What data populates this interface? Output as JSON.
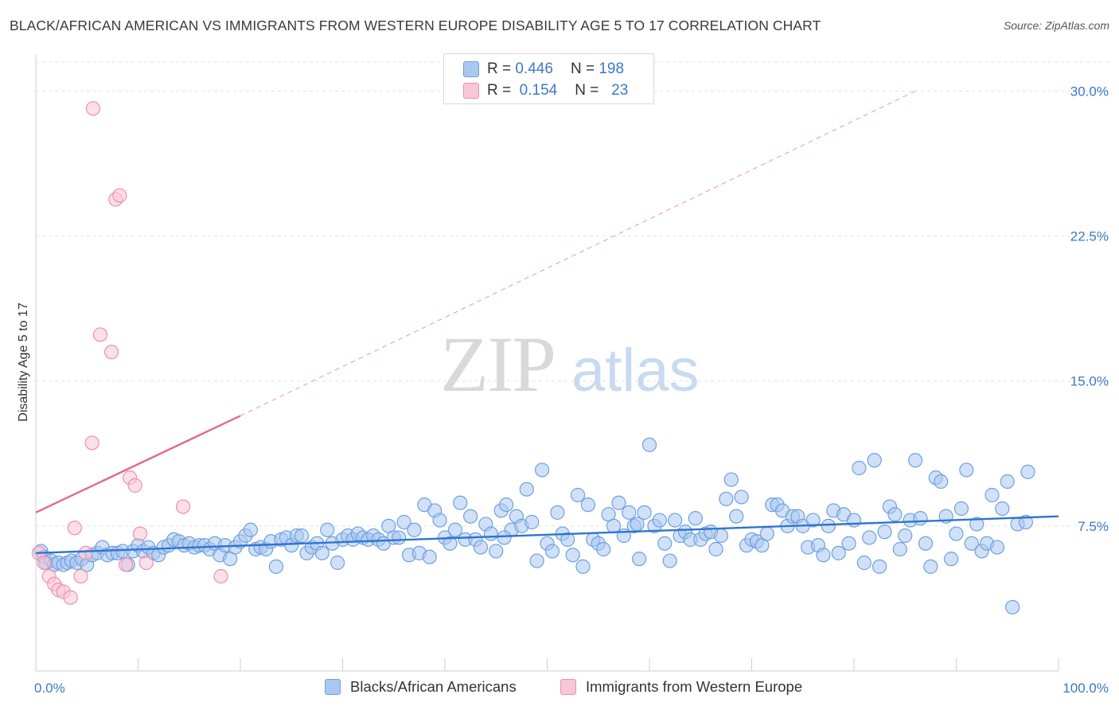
{
  "title": "BLACK/AFRICAN AMERICAN VS IMMIGRANTS FROM WESTERN EUROPE DISABILITY AGE 5 TO 17 CORRELATION CHART",
  "source": "Source: ZipAtlas.com",
  "watermark": {
    "zip": "ZIP",
    "atlas": "atlas"
  },
  "legend": {
    "r_label": "R =",
    "n_label": "N =",
    "rows": [
      {
        "r": "0.446",
        "n": "198",
        "color": "#a9c8f0",
        "border": "#6f9fe0"
      },
      {
        "r": "0.154",
        "n": "23",
        "color": "#f9c6d5",
        "border": "#ef8fab"
      }
    ]
  },
  "chart_data": {
    "type": "scatter",
    "title": "BLACK/AFRICAN AMERICAN VS IMMIGRANTS FROM WESTERN EUROPE DISABILITY AGE 5 TO 17 CORRELATION CHART",
    "xlabel": "",
    "ylabel": "Disability Age 5 to 17",
    "xlim": [
      0,
      100
    ],
    "ylim": [
      0,
      31.5
    ],
    "x_tick_labels": [
      "0.0%",
      "100.0%"
    ],
    "y_ticks": [
      7.5,
      15.0,
      22.5,
      30.0
    ],
    "y_tick_labels": [
      "7.5%",
      "15.0%",
      "22.5%",
      "30.0%"
    ],
    "grid": true,
    "legend_position": "bottom",
    "series": [
      {
        "name": "Blacks/African Americans",
        "color": "#6f9fe0",
        "fill": "#a9c8f0",
        "trend": {
          "x": [
            0,
            100
          ],
          "y": [
            6.1,
            8.0
          ],
          "color": "#2f74d0"
        },
        "points": [
          [
            0.5,
            6.2
          ],
          [
            0.8,
            5.9
          ],
          [
            1.0,
            5.6
          ],
          [
            1.5,
            5.7
          ],
          [
            1.8,
            5.5
          ],
          [
            2.2,
            5.6
          ],
          [
            2.7,
            5.5
          ],
          [
            3.1,
            5.6
          ],
          [
            3.5,
            5.7
          ],
          [
            4.0,
            5.6
          ],
          [
            4.5,
            5.8
          ],
          [
            5.0,
            5.5
          ],
          [
            5.5,
            6.0
          ],
          [
            6.0,
            6.1
          ],
          [
            6.5,
            6.4
          ],
          [
            7.0,
            6.0
          ],
          [
            7.5,
            6.1
          ],
          [
            8.0,
            6.1
          ],
          [
            8.5,
            6.2
          ],
          [
            9.0,
            5.5
          ],
          [
            9.5,
            6.2
          ],
          [
            10.0,
            6.5
          ],
          [
            10.5,
            6.2
          ],
          [
            11.0,
            6.4
          ],
          [
            11.5,
            6.1
          ],
          [
            12.0,
            6.0
          ],
          [
            12.5,
            6.4
          ],
          [
            13.0,
            6.5
          ],
          [
            13.5,
            6.8
          ],
          [
            14.0,
            6.7
          ],
          [
            14.5,
            6.5
          ],
          [
            15.0,
            6.6
          ],
          [
            15.5,
            6.4
          ],
          [
            16.0,
            6.5
          ],
          [
            16.5,
            6.5
          ],
          [
            17.0,
            6.3
          ],
          [
            17.5,
            6.6
          ],
          [
            18.0,
            6.0
          ],
          [
            18.5,
            6.5
          ],
          [
            19.0,
            5.8
          ],
          [
            19.5,
            6.4
          ],
          [
            20.0,
            6.7
          ],
          [
            20.5,
            7.0
          ],
          [
            21.0,
            7.3
          ],
          [
            21.5,
            6.3
          ],
          [
            22.0,
            6.4
          ],
          [
            22.5,
            6.3
          ],
          [
            23.0,
            6.7
          ],
          [
            23.5,
            5.4
          ],
          [
            24.0,
            6.8
          ],
          [
            24.5,
            6.9
          ],
          [
            25.0,
            6.5
          ],
          [
            25.5,
            7.0
          ],
          [
            26.0,
            7.0
          ],
          [
            26.5,
            6.1
          ],
          [
            27.0,
            6.4
          ],
          [
            27.5,
            6.6
          ],
          [
            28.0,
            6.1
          ],
          [
            28.5,
            7.3
          ],
          [
            29.0,
            6.6
          ],
          [
            29.5,
            5.6
          ],
          [
            30.0,
            6.8
          ],
          [
            30.5,
            7.0
          ],
          [
            31.0,
            6.8
          ],
          [
            31.5,
            7.1
          ],
          [
            32.0,
            6.9
          ],
          [
            32.5,
            6.8
          ],
          [
            33.0,
            7.0
          ],
          [
            33.5,
            6.8
          ],
          [
            34.0,
            6.6
          ],
          [
            34.5,
            7.5
          ],
          [
            35.0,
            6.9
          ],
          [
            35.5,
            6.9
          ],
          [
            36.0,
            7.7
          ],
          [
            36.5,
            6.0
          ],
          [
            37.0,
            7.3
          ],
          [
            37.5,
            6.1
          ],
          [
            38.0,
            8.6
          ],
          [
            38.5,
            5.9
          ],
          [
            39.0,
            8.3
          ],
          [
            39.5,
            7.8
          ],
          [
            40.0,
            6.9
          ],
          [
            40.5,
            6.6
          ],
          [
            41.0,
            7.3
          ],
          [
            41.5,
            8.7
          ],
          [
            42.0,
            6.8
          ],
          [
            42.5,
            8.0
          ],
          [
            43.0,
            6.8
          ],
          [
            43.5,
            6.4
          ],
          [
            44.0,
            7.6
          ],
          [
            44.5,
            7.1
          ],
          [
            45.0,
            6.2
          ],
          [
            45.5,
            8.3
          ],
          [
            46.0,
            8.6
          ],
          [
            46.5,
            7.3
          ],
          [
            47.0,
            8.0
          ],
          [
            47.5,
            7.5
          ],
          [
            48.0,
            9.4
          ],
          [
            48.5,
            7.7
          ],
          [
            49.0,
            5.7
          ],
          [
            49.5,
            10.4
          ],
          [
            50.0,
            6.6
          ],
          [
            50.5,
            6.2
          ],
          [
            51.0,
            8.2
          ],
          [
            51.5,
            7.1
          ],
          [
            52.0,
            6.8
          ],
          [
            52.5,
            6.0
          ],
          [
            53.0,
            9.1
          ],
          [
            53.5,
            5.4
          ],
          [
            54.0,
            8.6
          ],
          [
            54.5,
            6.8
          ],
          [
            55.0,
            6.6
          ],
          [
            55.5,
            6.3
          ],
          [
            56.0,
            8.1
          ],
          [
            56.5,
            7.5
          ],
          [
            57.0,
            8.7
          ],
          [
            57.5,
            7.0
          ],
          [
            58.0,
            8.2
          ],
          [
            58.5,
            7.5
          ],
          [
            59.0,
            5.8
          ],
          [
            59.5,
            8.2
          ],
          [
            60.0,
            11.7
          ],
          [
            60.5,
            7.5
          ],
          [
            61.0,
            7.8
          ],
          [
            61.5,
            6.6
          ],
          [
            62.0,
            5.7
          ],
          [
            62.5,
            7.8
          ],
          [
            63.0,
            7.0
          ],
          [
            63.5,
            7.2
          ],
          [
            64.0,
            6.8
          ],
          [
            64.5,
            7.9
          ],
          [
            65.0,
            6.8
          ],
          [
            65.5,
            7.1
          ],
          [
            66.0,
            7.2
          ],
          [
            66.5,
            6.3
          ],
          [
            67.0,
            7.0
          ],
          [
            67.5,
            8.9
          ],
          [
            68.0,
            9.9
          ],
          [
            68.5,
            8.0
          ],
          [
            69.0,
            9.0
          ],
          [
            69.5,
            6.5
          ],
          [
            70.0,
            6.8
          ],
          [
            70.5,
            6.7
          ],
          [
            71.0,
            6.5
          ],
          [
            71.5,
            7.1
          ],
          [
            72.0,
            8.6
          ],
          [
            72.5,
            8.6
          ],
          [
            73.0,
            8.3
          ],
          [
            73.5,
            7.5
          ],
          [
            74.0,
            8.0
          ],
          [
            74.5,
            8.0
          ],
          [
            75.0,
            7.5
          ],
          [
            75.5,
            6.4
          ],
          [
            76.0,
            7.8
          ],
          [
            76.5,
            6.5
          ],
          [
            77.0,
            6.0
          ],
          [
            77.5,
            7.5
          ],
          [
            78.0,
            8.3
          ],
          [
            78.5,
            6.1
          ],
          [
            79.0,
            8.1
          ],
          [
            79.5,
            6.6
          ],
          [
            80.0,
            7.8
          ],
          [
            80.5,
            10.5
          ],
          [
            81.0,
            5.6
          ],
          [
            81.5,
            6.9
          ],
          [
            82.0,
            10.9
          ],
          [
            82.5,
            5.4
          ],
          [
            83.0,
            7.2
          ],
          [
            83.5,
            8.5
          ],
          [
            84.0,
            8.1
          ],
          [
            84.5,
            6.3
          ],
          [
            85.0,
            7.0
          ],
          [
            85.5,
            7.8
          ],
          [
            86.0,
            10.9
          ],
          [
            86.5,
            7.9
          ],
          [
            87.0,
            6.6
          ],
          [
            87.5,
            5.4
          ],
          [
            88.0,
            10.0
          ],
          [
            88.5,
            9.8
          ],
          [
            89.0,
            8.0
          ],
          [
            89.5,
            5.8
          ],
          [
            90.0,
            7.1
          ],
          [
            90.5,
            8.4
          ],
          [
            91.0,
            10.4
          ],
          [
            91.5,
            6.6
          ],
          [
            92.0,
            7.6
          ],
          [
            92.5,
            6.2
          ],
          [
            93.0,
            6.6
          ],
          [
            93.5,
            9.1
          ],
          [
            94.0,
            6.4
          ],
          [
            94.5,
            8.4
          ],
          [
            95.0,
            9.8
          ],
          [
            95.5,
            3.3
          ],
          [
            96.0,
            7.6
          ],
          [
            97.0,
            10.3
          ],
          [
            96.8,
            7.7
          ],
          [
            58.8,
            7.6
          ],
          [
            45.8,
            6.9
          ]
        ]
      },
      {
        "name": "Immigrants from Western Europe",
        "color": "#ef8fab",
        "fill": "#f9c6d5",
        "trend": {
          "x": [
            0,
            20
          ],
          "y": [
            8.2,
            13.2
          ],
          "color": "#e06a93"
        },
        "trend_extension": {
          "x": [
            20,
            86
          ],
          "y": [
            13.2,
            30.0
          ]
        },
        "points": [
          [
            0.3,
            6.1
          ],
          [
            0.8,
            5.6
          ],
          [
            1.3,
            4.9
          ],
          [
            1.8,
            4.5
          ],
          [
            2.2,
            4.2
          ],
          [
            2.7,
            4.1
          ],
          [
            3.4,
            3.8
          ],
          [
            3.8,
            7.4
          ],
          [
            4.4,
            4.9
          ],
          [
            4.9,
            6.1
          ],
          [
            5.6,
            29.1
          ],
          [
            7.8,
            24.4
          ],
          [
            8.2,
            24.6
          ],
          [
            6.3,
            17.4
          ],
          [
            7.4,
            16.5
          ],
          [
            5.5,
            11.8
          ],
          [
            9.2,
            10.0
          ],
          [
            9.7,
            9.6
          ],
          [
            8.8,
            5.5
          ],
          [
            10.2,
            7.1
          ],
          [
            10.8,
            5.6
          ],
          [
            14.4,
            8.5
          ],
          [
            18.1,
            4.9
          ]
        ]
      }
    ]
  }
}
